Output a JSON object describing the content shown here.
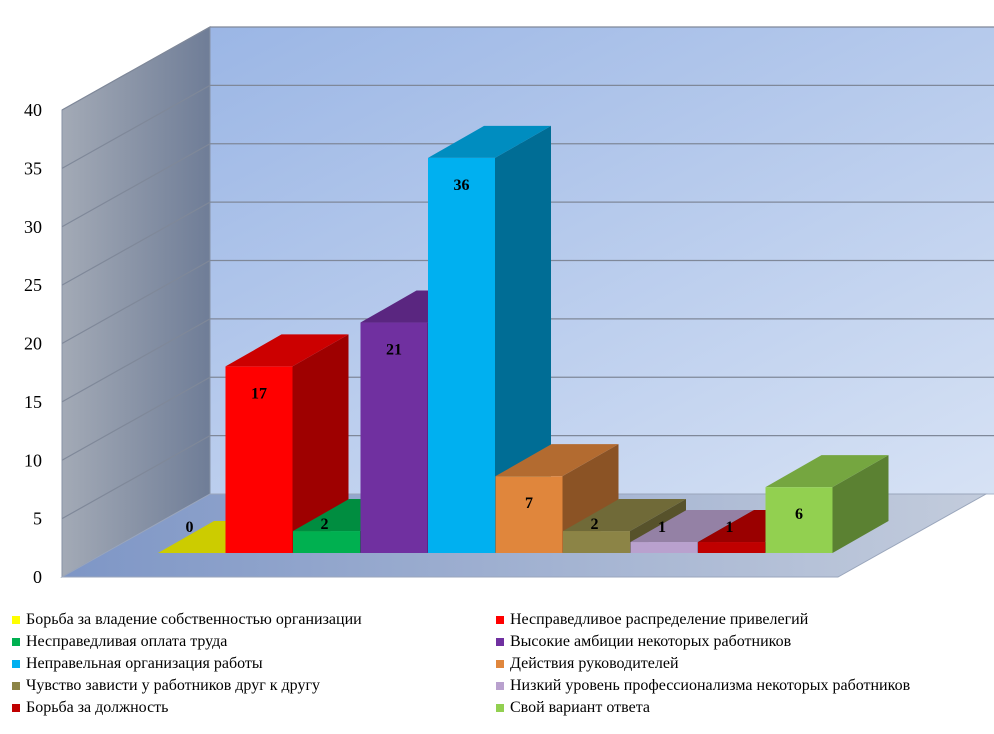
{
  "chart_data": {
    "type": "bar",
    "title": "",
    "xlabel": "",
    "ylabel": "",
    "ylim": [
      0,
      40
    ],
    "y_ticks": [
      "0",
      "5",
      "10",
      "15",
      "20",
      "25",
      "30",
      "35",
      "40"
    ],
    "grid": true,
    "three_d": true,
    "legend_position": "bottom",
    "series": [
      {
        "name": "Борьба за владение собственностью организации",
        "value": 0,
        "label": "0",
        "color": "#FFFF00"
      },
      {
        "name": "Несправедливое распределение привелегий",
        "value": 17,
        "label": "17",
        "color": "#FF0000"
      },
      {
        "name": "Несправедливая оплата труда",
        "value": 2,
        "label": "2",
        "color": "#00B050"
      },
      {
        "name": "Высокие амбиции некоторых работников",
        "value": 21,
        "label": "21",
        "color": "#7030A0"
      },
      {
        "name": "Неправельная организация работы",
        "value": 36,
        "label": "36",
        "color": "#00B0F0"
      },
      {
        "name": "Действия руководителей",
        "value": 7,
        "label": "7",
        "color": "#E0863C"
      },
      {
        "name": "Чувство зависти у работников друг к другу",
        "value": 2,
        "label": "2",
        "color": "#8C8446"
      },
      {
        "name": "Низкий уровень профессионализма некоторых работников",
        "value": 1,
        "label": "1",
        "color": "#B9A1CE"
      },
      {
        "name": "Борьба за должность",
        "value": 1,
        "label": "1",
        "color": "#C00000"
      },
      {
        "name": "Свой вариант ответа",
        "value": 6,
        "label": "6",
        "color": "#92D050"
      }
    ]
  }
}
